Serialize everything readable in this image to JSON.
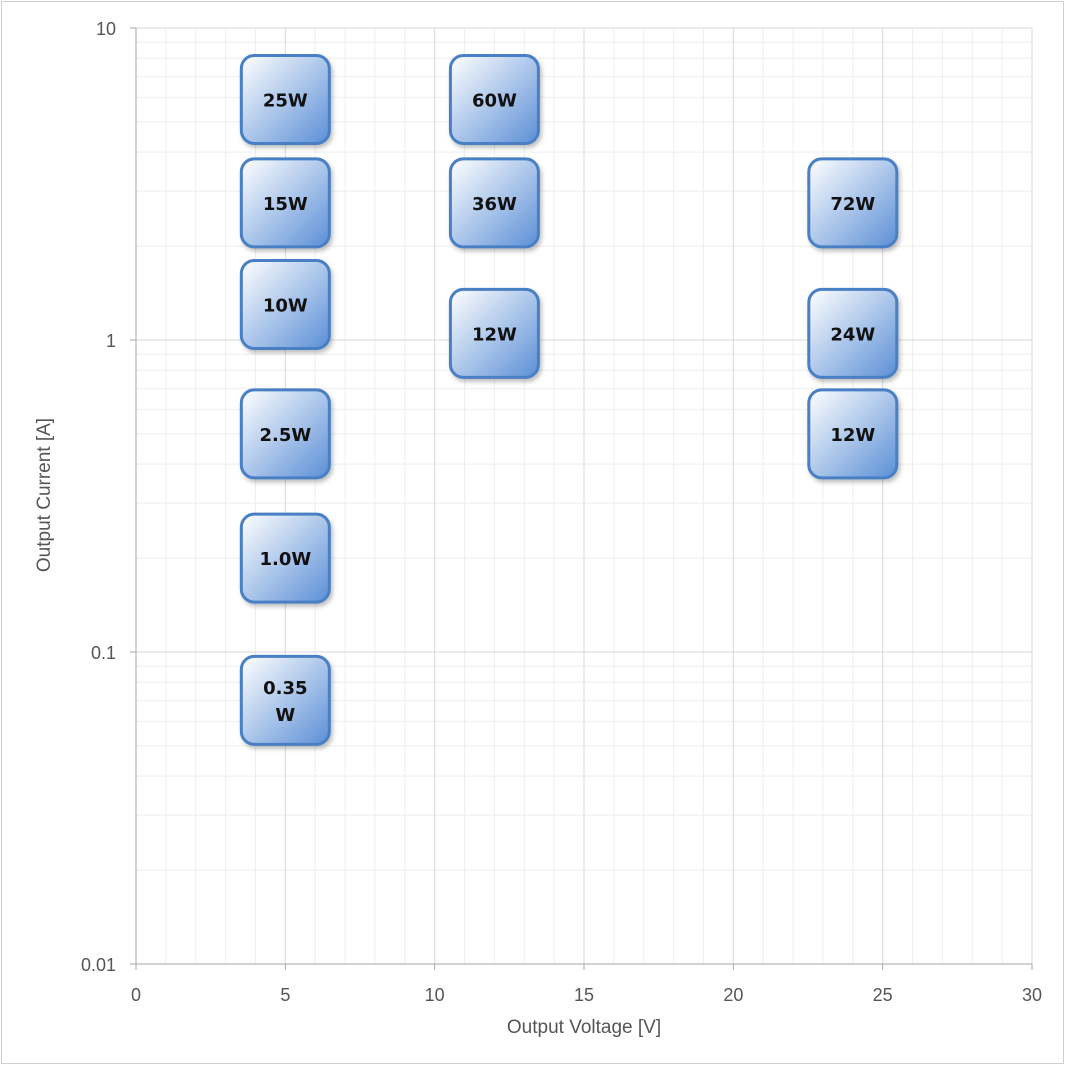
{
  "chart_data": {
    "type": "scatter",
    "title": "",
    "xlabel": "Output Voltage [V]",
    "ylabel": "Output Current [A]",
    "xlim": [
      0,
      30
    ],
    "ylim": [
      0.01,
      10
    ],
    "y_scale": "log",
    "grid": true,
    "x_ticks": [
      "0",
      "5",
      "10",
      "15",
      "20",
      "25",
      "30"
    ],
    "y_ticks": [
      "10",
      "1",
      "0.1",
      "0.01"
    ],
    "marker_style": "rounded-square boxes with blue gradient",
    "colors": {
      "box_fill_light": "#ffffff",
      "box_fill_dark": "#5b8fd6",
      "box_border": "#4a7fc4",
      "grid": "#d9d9d9",
      "minor_grid": "#eeeeee"
    },
    "points": [
      {
        "label": "25W",
        "x": 5,
        "y": 5.9
      },
      {
        "label": "15W",
        "x": 5,
        "y": 2.75
      },
      {
        "label": "10W",
        "x": 5,
        "y": 1.3
      },
      {
        "label": "2.5W",
        "x": 5,
        "y": 0.5
      },
      {
        "label": "1.0W",
        "x": 5,
        "y": 0.2
      },
      {
        "label": "0.35\nW",
        "x": 5,
        "y": 0.07
      },
      {
        "label": "60W",
        "x": 12,
        "y": 5.9
      },
      {
        "label": "36W",
        "x": 12,
        "y": 2.75
      },
      {
        "label": "12W",
        "x": 12,
        "y": 1.05
      },
      {
        "label": "72W",
        "x": 24,
        "y": 2.75
      },
      {
        "label": "24W",
        "x": 24,
        "y": 1.05
      },
      {
        "label": "12W",
        "x": 24,
        "y": 0.5
      }
    ]
  }
}
